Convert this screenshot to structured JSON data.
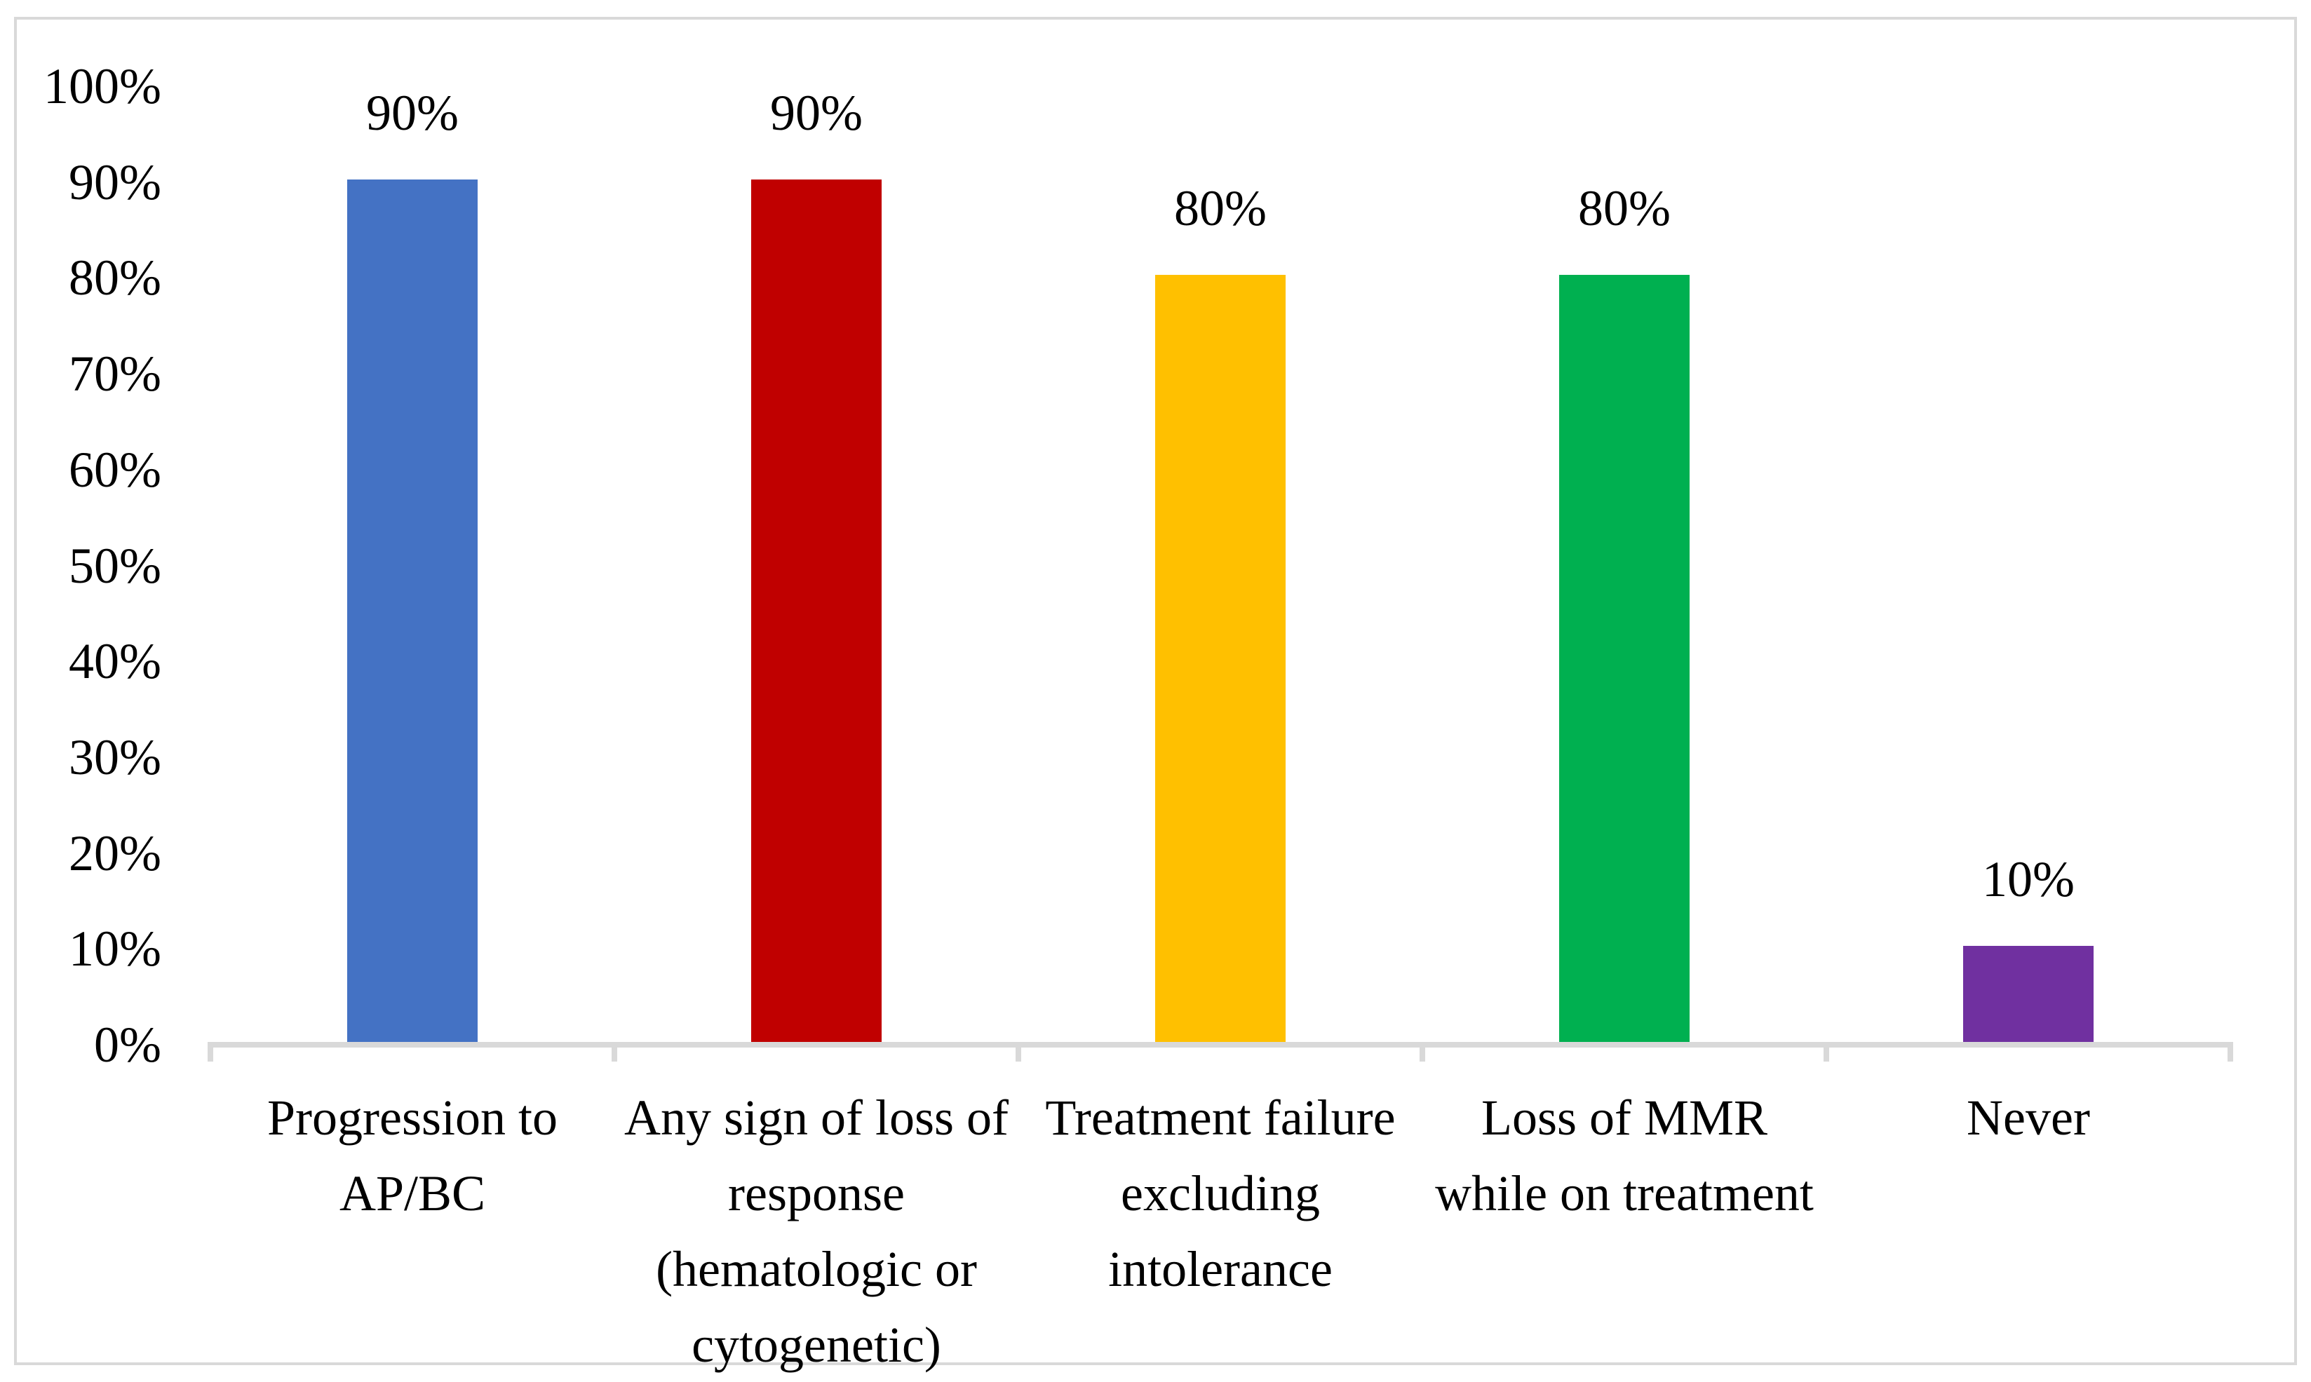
{
  "chart_data": {
    "type": "bar",
    "title": "",
    "categories": [
      "Progression to\nAP/BC",
      "Any sign of loss of\nresponse\n(hematologic or\ncytogenetic)",
      "Treatment failure\nexcluding\nintolerance",
      "Loss of MMR\nwhile on treatment",
      "Never"
    ],
    "values": [
      90,
      90,
      80,
      80,
      10
    ],
    "data_labels": [
      "90%",
      "90%",
      "80%",
      "80%",
      "10%"
    ],
    "bar_colors": [
      "#4472C4",
      "#C00000",
      "#FFC000",
      "#00B050",
      "#7030A0"
    ],
    "y_axis": {
      "min": 0,
      "max": 100,
      "tick_step": 10,
      "tick_labels": [
        "0%",
        "10%",
        "20%",
        "30%",
        "40%",
        "50%",
        "60%",
        "70%",
        "80%",
        "90%",
        "100%"
      ]
    },
    "xlabel": "",
    "ylabel": "",
    "grid": false,
    "legend": "none",
    "colors": {
      "axis_line": "#D9D9D9",
      "chart_border": "#D9D9D9",
      "text": "#000000",
      "background": "#FFFFFF"
    }
  }
}
